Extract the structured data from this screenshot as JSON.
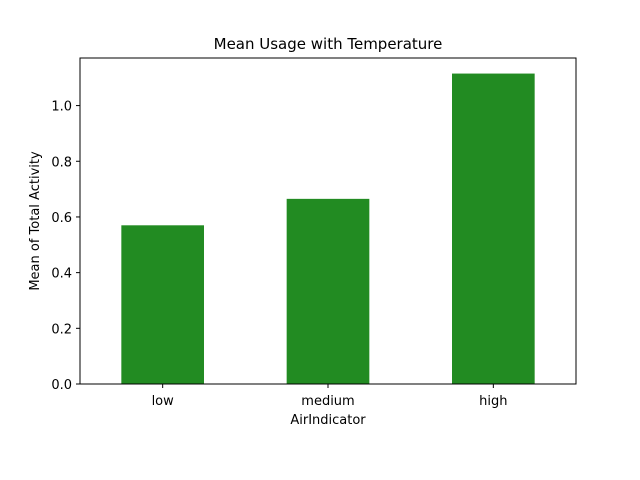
{
  "chart_data": {
    "type": "bar",
    "title": "Mean Usage with Temperature",
    "xlabel": "AirIndicator",
    "ylabel": "Mean of Total Activity",
    "categories": [
      "low",
      "medium",
      "high"
    ],
    "values": [
      0.57,
      0.665,
      1.115
    ],
    "ylim": [
      0,
      1.1709
    ],
    "yticks": [
      0.0,
      0.2,
      0.4,
      0.6,
      0.8,
      1.0
    ],
    "ytick_labels": [
      "0.0",
      "0.2",
      "0.4",
      "0.6",
      "0.8",
      "1.0"
    ],
    "grid": false,
    "legend": "none",
    "bar_color": "#228b22"
  }
}
